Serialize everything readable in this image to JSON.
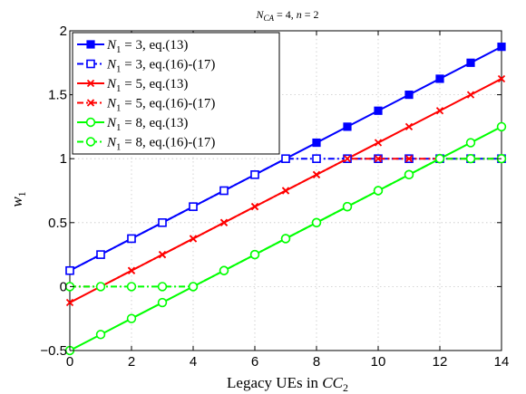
{
  "chart_data": {
    "type": "line",
    "title": "N_CA = 4, n = 2",
    "xlabel": "Legacy UEs in CC_2",
    "ylabel": "w_1",
    "xlim": [
      0,
      14
    ],
    "ylim": [
      -0.5,
      2
    ],
    "xticks": [
      0,
      2,
      4,
      6,
      8,
      10,
      12,
      14
    ],
    "yticks": [
      -0.5,
      0,
      0.5,
      1,
      1.5,
      2
    ],
    "xtick_labels": [
      "0",
      "2",
      "4",
      "6",
      "8",
      "10",
      "12",
      "14"
    ],
    "ytick_labels": [
      "−0.5",
      "0",
      "0.5",
      "1",
      "1.5",
      "2"
    ],
    "grid": true,
    "legend_position": "top-left",
    "x": [
      0,
      1,
      2,
      3,
      4,
      5,
      6,
      7,
      8,
      9,
      10,
      11,
      12,
      13,
      14
    ],
    "series": [
      {
        "name": "N_1 = 3, eq.(13)",
        "color": "#0000ff",
        "dash": "solid",
        "marker": "square-filled",
        "values": [
          0.125,
          0.25,
          0.375,
          0.5,
          0.625,
          0.75,
          0.875,
          1.0,
          1.125,
          1.25,
          1.375,
          1.5,
          1.625,
          1.75,
          1.875
        ]
      },
      {
        "name": "N_1 = 3, eq.(16)-(17)",
        "color": "#0000ff",
        "dash": "dashdot",
        "marker": "square-open",
        "values": [
          0.125,
          0.25,
          0.375,
          0.5,
          0.625,
          0.75,
          0.875,
          1.0,
          1.0,
          1.0,
          1.0,
          1.0,
          1.0,
          1.0,
          1.0
        ]
      },
      {
        "name": "N_1 = 5, eq.(13)",
        "color": "#ff0000",
        "dash": "solid",
        "marker": "x",
        "values": [
          -0.125,
          0.0,
          0.125,
          0.25,
          0.375,
          0.5,
          0.625,
          0.75,
          0.875,
          1.0,
          1.125,
          1.25,
          1.375,
          1.5,
          1.625
        ]
      },
      {
        "name": "N_1 = 5, eq.(16)-(17)",
        "color": "#ff0000",
        "dash": "dashdot",
        "marker": "x",
        "values": [
          0.0,
          0.0,
          0.125,
          0.25,
          0.375,
          0.5,
          0.625,
          0.75,
          0.875,
          1.0,
          1.0,
          1.0,
          1.0,
          1.0,
          1.0
        ]
      },
      {
        "name": "N_1 = 8, eq.(13)",
        "color": "#00ff00",
        "dash": "solid",
        "marker": "circle-open",
        "values": [
          -0.5,
          -0.375,
          -0.25,
          -0.125,
          0.0,
          0.125,
          0.25,
          0.375,
          0.5,
          0.625,
          0.75,
          0.875,
          1.0,
          1.125,
          1.25
        ]
      },
      {
        "name": "N_1 = 8, eq.(16)-(17)",
        "color": "#00ff00",
        "dash": "dashdot",
        "marker": "circle-open",
        "values": [
          0.0,
          0.0,
          0.0,
          0.0,
          0.0,
          0.125,
          0.25,
          0.375,
          0.5,
          0.625,
          0.75,
          0.875,
          1.0,
          1.0,
          1.0
        ]
      }
    ],
    "legend_labels": [
      {
        "sym": "N",
        "sub": "1",
        "rest": " = 3, eq.(13)"
      },
      {
        "sym": "N",
        "sub": "1",
        "rest": " = 3, eq.(16)-(17)"
      },
      {
        "sym": "N",
        "sub": "1",
        "rest": " = 5, eq.(13)"
      },
      {
        "sym": "N",
        "sub": "1",
        "rest": " = 5, eq.(16)-(17)"
      },
      {
        "sym": "N",
        "sub": "1",
        "rest": " = 8, eq.(13)"
      },
      {
        "sym": "N",
        "sub": "1",
        "rest": " = 8, eq.(16)-(17)"
      }
    ]
  }
}
